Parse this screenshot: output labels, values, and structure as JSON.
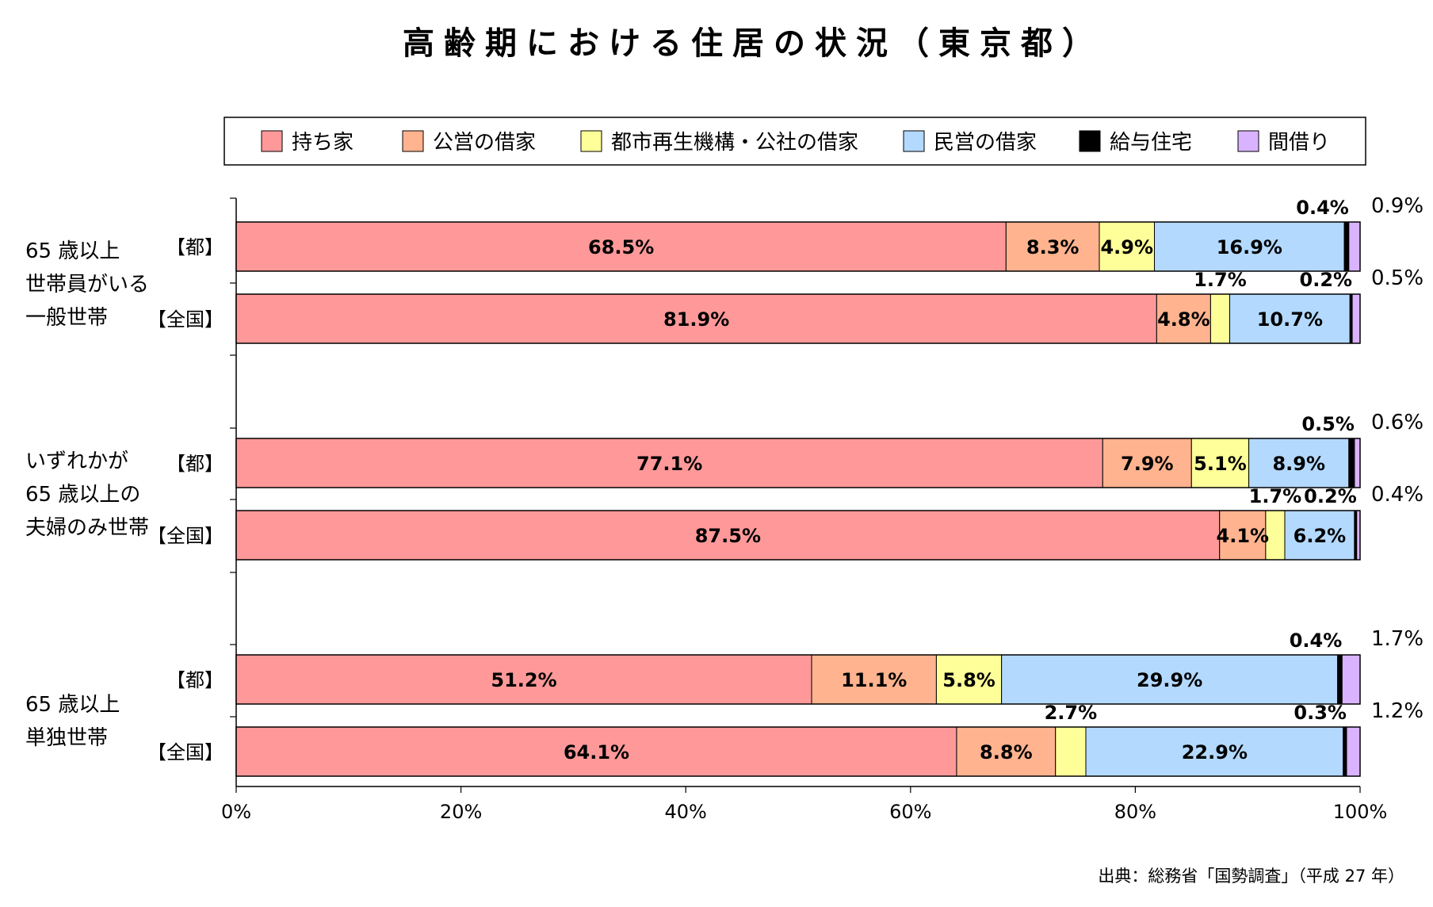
{
  "chart_data": {
    "type": "bar",
    "orientation": "horizontal",
    "stacked": true,
    "title": "高齢期における住居の状況（東京都）",
    "source": "出典：総務省「国勢調査」（平成 27 年）",
    "xlim": [
      0,
      100
    ],
    "x_ticks": [
      "0%",
      "20%",
      "40%",
      "60%",
      "80%",
      "100%"
    ],
    "legend": {
      "position": "top",
      "items": [
        {
          "name": "持ち家",
          "color": "#ff9999"
        },
        {
          "name": "公営の借家",
          "color": "#ffb38f"
        },
        {
          "name": "都市再生機構・公社の借家",
          "color": "#ffff99"
        },
        {
          "name": "民営の借家",
          "color": "#b3d9ff"
        },
        {
          "name": "給与住宅",
          "color": "#000000"
        },
        {
          "name": "間借り",
          "color": "#d9b3ff"
        }
      ]
    },
    "groups": [
      {
        "label_lines": [
          "65 歳以上",
          "世帯員がいる",
          "一般世帯"
        ],
        "rows": [
          {
            "label": "【都】",
            "values": [
              68.5,
              8.3,
              4.9,
              16.9,
              0.4,
              0.9
            ],
            "labels": [
              "68.5%",
              "8.3%",
              "4.9%",
              "16.9%",
              "0.4%",
              "0.9%"
            ]
          },
          {
            "label": "【全国】",
            "values": [
              81.9,
              4.8,
              1.7,
              10.7,
              0.2,
              0.5
            ],
            "labels": [
              "81.9%",
              "4.8%",
              "1.7%",
              "10.7%",
              "0.2%",
              "0.5%"
            ]
          }
        ]
      },
      {
        "label_lines": [
          "いずれかが",
          "65 歳以上の",
          "夫婦のみ世帯"
        ],
        "rows": [
          {
            "label": "【都】",
            "values": [
              77.1,
              7.9,
              5.1,
              8.9,
              0.5,
              0.6
            ],
            "labels": [
              "77.1%",
              "7.9%",
              "5.1%",
              "8.9%",
              "0.5%",
              "0.6%"
            ]
          },
          {
            "label": "【全国】",
            "values": [
              87.5,
              4.1,
              1.7,
              6.2,
              0.2,
              0.4
            ],
            "labels": [
              "87.5%",
              "4.1%",
              "1.7%",
              "6.2%",
              "0.2%",
              "0.4%"
            ]
          }
        ]
      },
      {
        "label_lines": [
          "65 歳以上",
          "単独世帯"
        ],
        "rows": [
          {
            "label": "【都】",
            "values": [
              51.2,
              11.1,
              5.8,
              29.9,
              0.4,
              1.7
            ],
            "labels": [
              "51.2%",
              "11.1%",
              "5.8%",
              "29.9%",
              "0.4%",
              "1.7%"
            ]
          },
          {
            "label": "【全国】",
            "values": [
              64.1,
              8.8,
              2.7,
              22.9,
              0.3,
              1.2
            ],
            "labels": [
              "64.1%",
              "8.8%",
              "2.7%",
              "22.9%",
              "0.3%",
              "1.2%"
            ]
          }
        ]
      }
    ]
  }
}
